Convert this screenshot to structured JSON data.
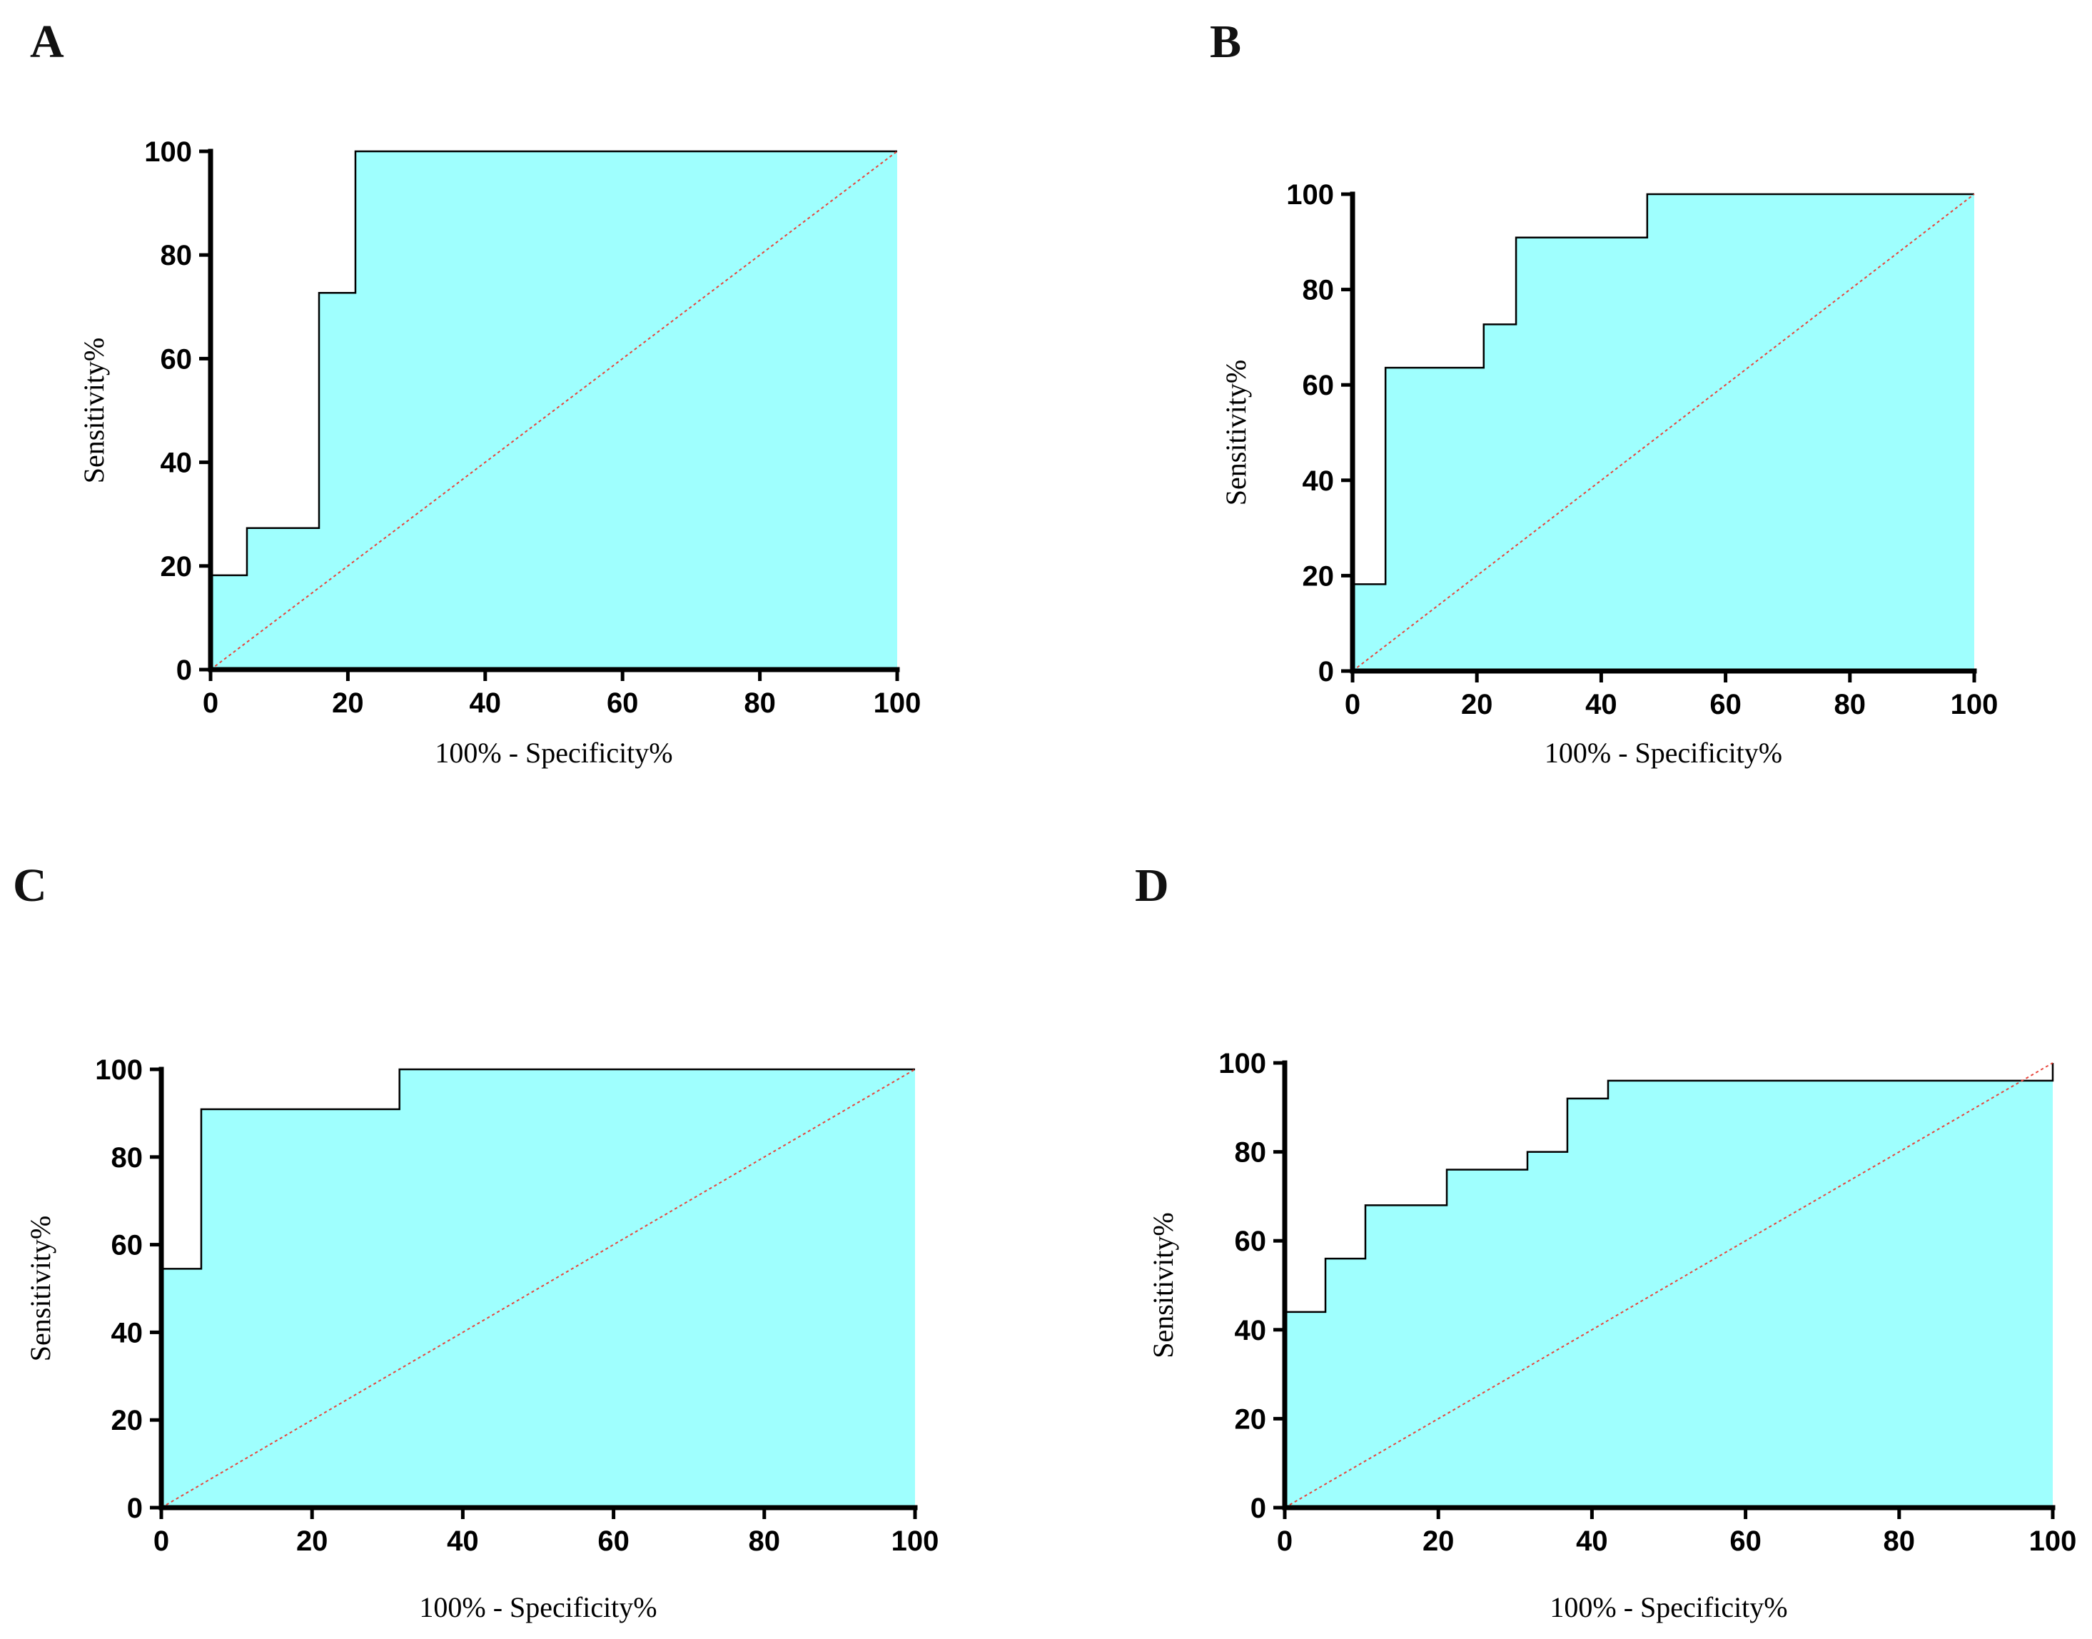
{
  "figure": {
    "chart_data": [
      {
        "type": "line",
        "panel": "A",
        "xlabel": "100% - Specificity%",
        "ylabel": "Sensitivity%",
        "xlim": [
          0,
          100
        ],
        "ylim": [
          0,
          100
        ],
        "xticks": [
          0,
          20,
          40,
          60,
          80,
          100
        ],
        "yticks": [
          0,
          20,
          40,
          60,
          80,
          100
        ],
        "series": [
          {
            "name": "ROC curve",
            "style": "step-filled",
            "x": [
              0,
              0,
              5.3,
              5.3,
              15.8,
              15.8,
              21.1,
              21.1,
              100
            ],
            "y": [
              0,
              18.2,
              18.2,
              27.3,
              27.3,
              72.7,
              72.7,
              100,
              100
            ]
          },
          {
            "name": "Reference line",
            "style": "dashed",
            "x": [
              0,
              100
            ],
            "y": [
              0,
              100
            ]
          }
        ]
      },
      {
        "type": "line",
        "panel": "B",
        "xlabel": "100% - Specificity%",
        "ylabel": "Sensitivity%",
        "xlim": [
          0,
          100
        ],
        "ylim": [
          0,
          100
        ],
        "xticks": [
          0,
          20,
          40,
          60,
          80,
          100
        ],
        "yticks": [
          0,
          20,
          40,
          60,
          80,
          100
        ],
        "series": [
          {
            "name": "ROC curve",
            "style": "step-filled",
            "x": [
              0,
              0,
              5.3,
              5.3,
              21.1,
              21.1,
              26.3,
              26.3,
              47.4,
              47.4,
              100
            ],
            "y": [
              0,
              18.2,
              18.2,
              63.6,
              63.6,
              72.7,
              72.7,
              90.9,
              90.9,
              100,
              100
            ]
          },
          {
            "name": "Reference line",
            "style": "dashed",
            "x": [
              0,
              100
            ],
            "y": [
              0,
              100
            ]
          }
        ]
      },
      {
        "type": "line",
        "panel": "C",
        "xlabel": "100% - Specificity%",
        "ylabel": "Sensitivity%",
        "xlim": [
          0,
          100
        ],
        "ylim": [
          0,
          100
        ],
        "xticks": [
          0,
          20,
          40,
          60,
          80,
          100
        ],
        "yticks": [
          0,
          20,
          40,
          60,
          80,
          100
        ],
        "series": [
          {
            "name": "ROC curve",
            "style": "step-filled",
            "x": [
              0,
              0,
              5.3,
              5.3,
              31.6,
              31.6,
              100
            ],
            "y": [
              0,
              54.5,
              54.5,
              90.9,
              90.9,
              100,
              100
            ]
          },
          {
            "name": "Reference line",
            "style": "dashed",
            "x": [
              0,
              100
            ],
            "y": [
              0,
              100
            ]
          }
        ]
      },
      {
        "type": "line",
        "panel": "D",
        "xlabel": "100% - Specificity%",
        "ylabel": "Sensitivity%",
        "xlim": [
          0,
          100
        ],
        "ylim": [
          0,
          100
        ],
        "xticks": [
          0,
          20,
          40,
          60,
          80,
          100
        ],
        "yticks": [
          0,
          20,
          40,
          60,
          80,
          100
        ],
        "series": [
          {
            "name": "ROC curve",
            "style": "step-filled",
            "x": [
              0,
              0,
              5.3,
              5.3,
              10.5,
              10.5,
              21.1,
              21.1,
              31.6,
              31.6,
              36.8,
              36.8,
              42.1,
              42.1,
              100,
              100
            ],
            "y": [
              0,
              44,
              44,
              56,
              56,
              68,
              68,
              76,
              76,
              80,
              80,
              92,
              92,
              96,
              96,
              100
            ]
          },
          {
            "name": "Reference line",
            "style": "dashed",
            "x": [
              0,
              100
            ],
            "y": [
              0,
              100
            ]
          }
        ]
      }
    ],
    "colors": {
      "fill": "#9ffffe",
      "curve": "#000000",
      "reference": "#e8453c",
      "axis": "#000000"
    }
  }
}
